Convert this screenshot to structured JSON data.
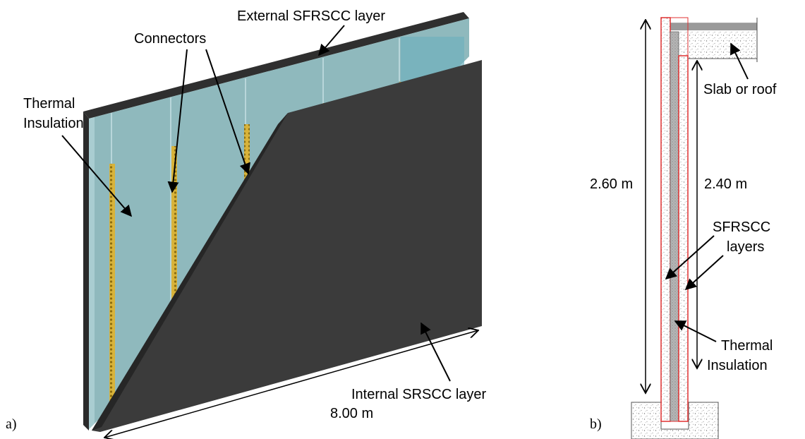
{
  "panel_a": {
    "tag": "a)",
    "labels": {
      "external_layer": "External SFRSCC layer",
      "connectors": "Connectors",
      "thermal_insulation_line1": "Thermal",
      "thermal_insulation_line2": "Insulation",
      "internal_layer": "Internal SRSCC layer",
      "length": "8.00 m"
    },
    "colors": {
      "insulation": "#8fb9bd",
      "concrete_dark": "#3b3b3b",
      "connector": "#c9a227"
    }
  },
  "panel_b": {
    "tag": "b)",
    "labels": {
      "slab": "Slab or roof",
      "height_total": "2.60 m",
      "height_inner": "2.40 m",
      "sfrscc_line1": "SFRSCC",
      "sfrscc_line2": "layers",
      "thermal_line1": "Thermal",
      "thermal_line2": "Insulation"
    },
    "colors": {
      "layer_outline": "#e03030",
      "insulation_fill": "#b5b5b5"
    }
  }
}
